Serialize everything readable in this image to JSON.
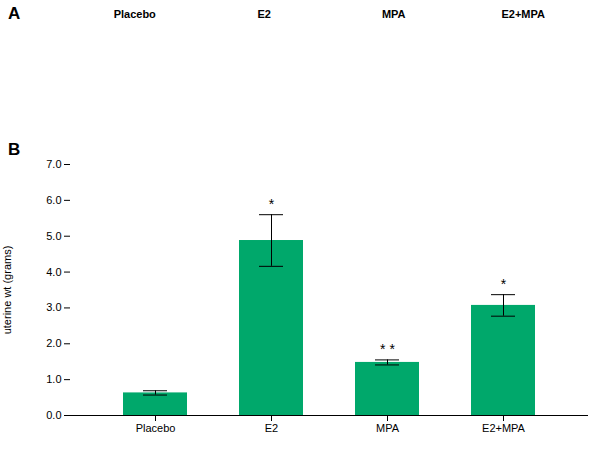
{
  "chart_data": {
    "type": "bar",
    "categories": [
      "Placebo",
      "E2",
      "MPA",
      "E2+MPA"
    ],
    "values": [
      0.63,
      4.88,
      1.48,
      3.07
    ],
    "errors": [
      0.06,
      0.72,
      0.07,
      0.3
    ],
    "significance_labels": [
      null,
      "*",
      "* *",
      "*"
    ],
    "color": "#00A86B",
    "ylabel": "uterine wt (grams)",
    "ylim": [
      0,
      7
    ],
    "yticks": [
      0,
      1,
      2,
      3,
      4,
      5,
      6,
      7
    ],
    "annotations": [
      "A",
      "B"
    ],
    "header_labels": [
      "Placebo",
      "E2",
      "MPA",
      "E2+MPA"
    ]
  }
}
